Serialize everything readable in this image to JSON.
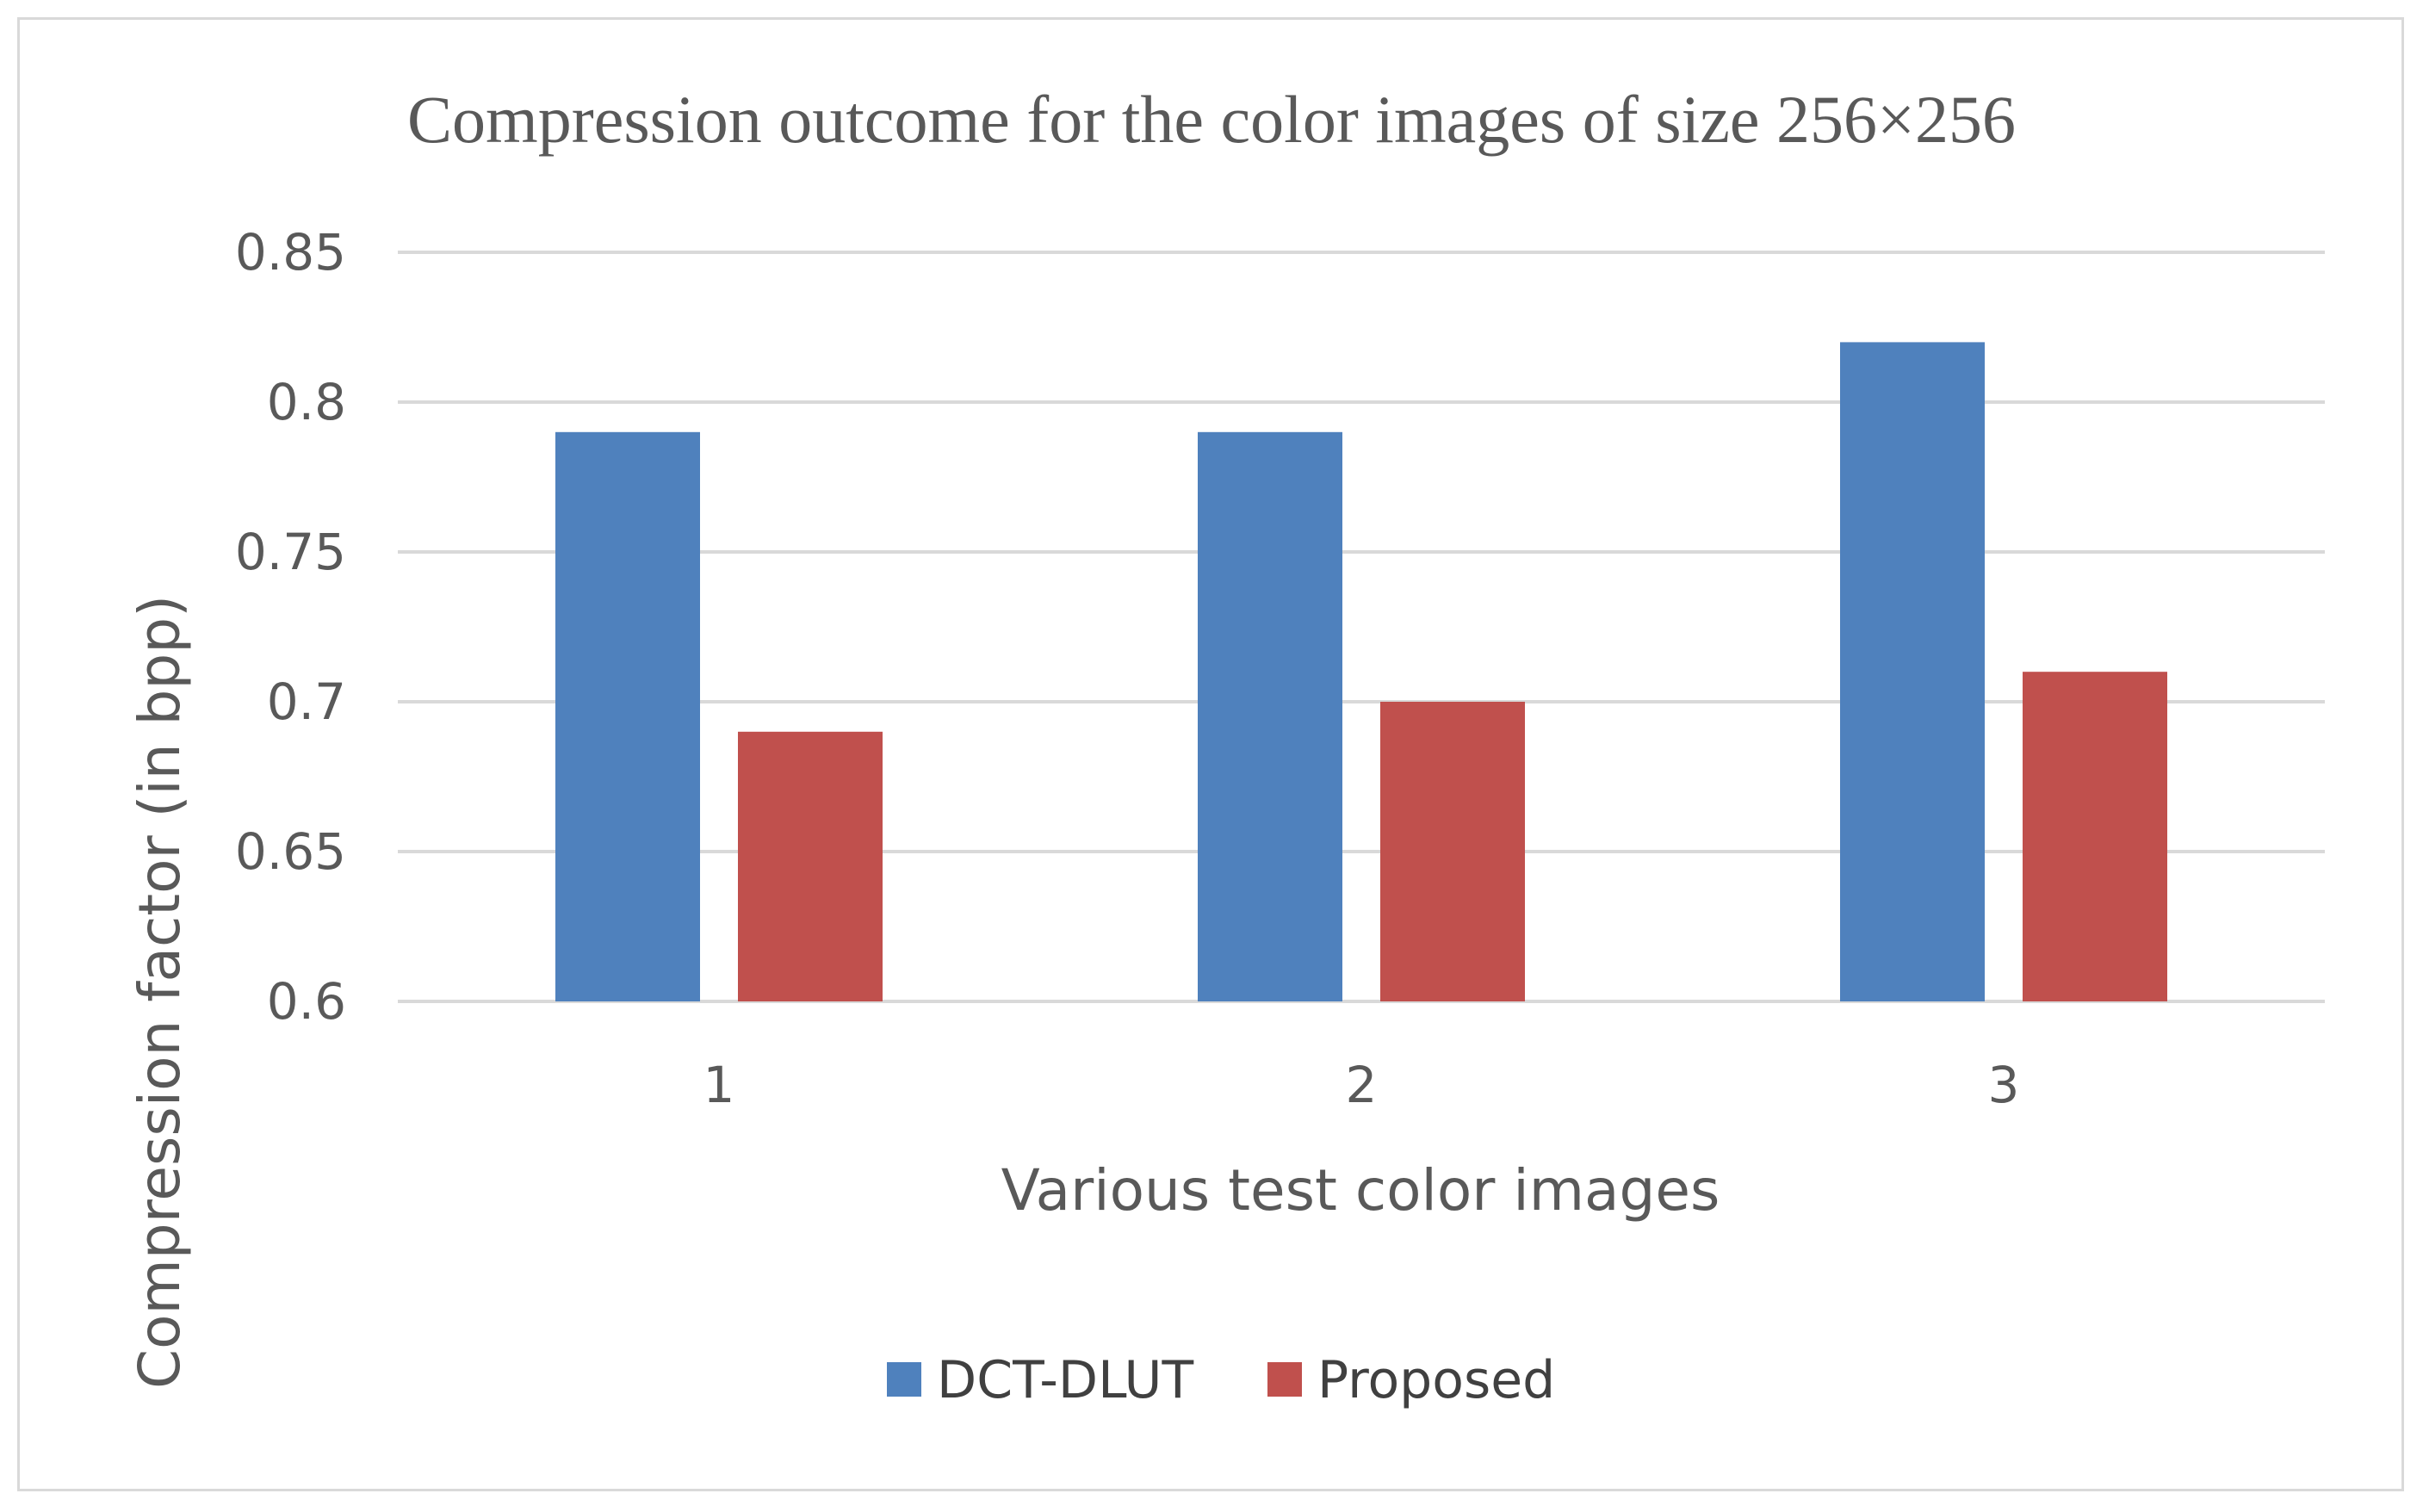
{
  "chart_data": {
    "type": "bar",
    "title": "Compression outcome for the color images of size 256×256",
    "xlabel": "Various test color images",
    "ylabel": "Compression factor (in bpp)",
    "categories": [
      "1",
      "2",
      "3"
    ],
    "series": [
      {
        "name": "DCT-DLUT",
        "values": [
          0.79,
          0.79,
          0.82
        ],
        "color": "#4f81bd"
      },
      {
        "name": "Proposed",
        "values": [
          0.69,
          0.7,
          0.71
        ],
        "color": "#c0504d"
      }
    ],
    "ylim": [
      0.6,
      0.85
    ],
    "yticks": [
      "0.6",
      "0.65",
      "0.7",
      "0.75",
      "0.8",
      "0.85"
    ],
    "grid": true,
    "gridColor": "#d9d9d9",
    "legend": "bottom"
  }
}
